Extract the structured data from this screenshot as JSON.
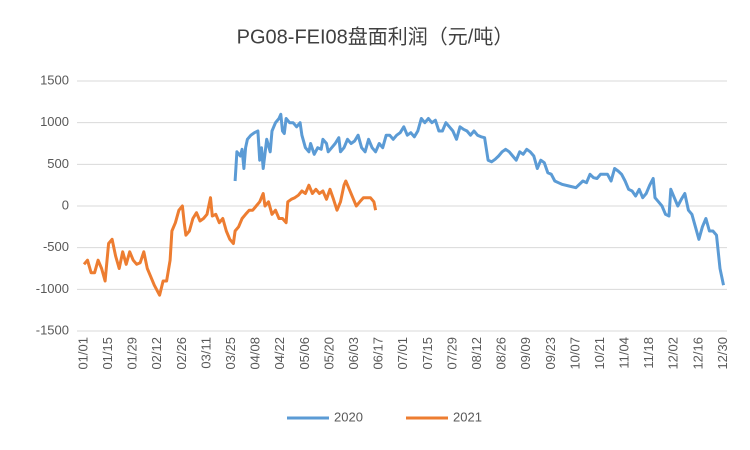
{
  "chart_data": {
    "type": "line",
    "title": "PG08-FEI08盘面利润（元/吨）",
    "xlim": [
      -4,
      366
    ],
    "ylim": [
      -1500,
      1500
    ],
    "yticks": [
      {
        "value": 1500,
        "label": "1500"
      },
      1000,
      500,
      0,
      -500,
      -1000,
      -1500
    ],
    "xticks": [
      {
        "value": 0,
        "label": "01/01"
      },
      {
        "value": 14,
        "label": "01/15"
      },
      {
        "value": 28,
        "label": "01/29"
      },
      {
        "value": 42,
        "label": "02/12"
      },
      {
        "value": 56,
        "label": "02/26"
      },
      {
        "value": 70,
        "label": "03/11"
      },
      {
        "value": 84,
        "label": "03/25"
      },
      {
        "value": 98,
        "label": "04/08"
      },
      {
        "value": 112,
        "label": "04/22"
      },
      {
        "value": 126,
        "label": "05/06"
      },
      {
        "value": 140,
        "label": "05/20"
      },
      {
        "value": 154,
        "label": "06/03"
      },
      {
        "value": 168,
        "label": "06/17"
      },
      {
        "value": 182,
        "label": "07/01"
      },
      {
        "value": 196,
        "label": "07/15"
      },
      {
        "value": 210,
        "label": "07/29"
      },
      {
        "value": 224,
        "label": "08/12"
      },
      {
        "value": 238,
        "label": "08/26"
      },
      {
        "value": 252,
        "label": "09/09"
      },
      {
        "value": 266,
        "label": "09/23"
      },
      {
        "value": 280,
        "label": "10/07"
      },
      {
        "value": 294,
        "label": "10/21"
      },
      {
        "value": 308,
        "label": "11/04"
      },
      {
        "value": 322,
        "label": "11/18"
      },
      {
        "value": 336,
        "label": "12/02"
      },
      {
        "value": 350,
        "label": "12/16"
      },
      {
        "value": 364,
        "label": "12/30"
      }
    ],
    "grid": true,
    "legend": "bottom",
    "series": [
      {
        "name": "2020",
        "color": "#5b9bd5",
        "x": [
          86,
          87,
          89,
          90,
          91,
          92,
          93,
          95,
          97,
          99,
          100,
          101,
          102,
          104,
          106,
          107,
          109,
          111,
          112,
          113,
          114,
          115,
          117,
          119,
          121,
          123,
          124,
          126,
          128,
          129,
          131,
          133,
          135,
          136,
          138,
          139,
          141,
          143,
          145,
          146,
          148,
          150,
          152,
          154,
          156,
          158,
          160,
          162,
          164,
          166,
          168,
          170,
          172,
          174,
          176,
          178,
          180,
          182,
          184,
          186,
          188,
          190,
          192,
          194,
          196,
          198,
          200,
          202,
          204,
          206,
          208,
          210,
          212,
          214,
          216,
          218,
          220,
          222,
          224,
          226,
          228,
          230,
          232,
          234,
          236,
          238,
          240,
          242,
          244,
          246,
          248,
          250,
          252,
          254,
          256,
          258,
          260,
          262,
          264,
          266,
          268,
          270,
          272,
          276,
          280,
          284,
          286,
          288,
          290,
          292,
          294,
          298,
          300,
          302,
          304,
          306,
          308,
          310,
          312,
          314,
          316,
          318,
          320,
          322,
          324,
          325,
          327,
          329,
          331,
          333,
          334,
          336,
          338,
          340,
          342,
          344,
          346,
          348,
          350,
          352,
          354,
          356,
          358,
          360,
          362,
          364
        ],
        "values": [
          300,
          650,
          600,
          680,
          450,
          700,
          800,
          850,
          880,
          900,
          550,
          700,
          450,
          800,
          650,
          900,
          1000,
          1050,
          1100,
          900,
          870,
          1050,
          1000,
          1000,
          950,
          1000,
          850,
          700,
          650,
          750,
          620,
          700,
          680,
          800,
          750,
          650,
          700,
          750,
          820,
          650,
          700,
          800,
          750,
          780,
          850,
          700,
          650,
          800,
          700,
          650,
          750,
          700,
          850,
          850,
          800,
          850,
          880,
          950,
          850,
          880,
          830,
          900,
          1050,
          1000,
          1050,
          1000,
          1030,
          900,
          900,
          1000,
          950,
          900,
          800,
          950,
          920,
          900,
          850,
          900,
          850,
          830,
          820,
          550,
          530,
          560,
          600,
          650,
          680,
          650,
          600,
          550,
          650,
          620,
          680,
          650,
          600,
          450,
          550,
          520,
          400,
          380,
          300,
          280,
          260,
          240,
          220,
          300,
          280,
          380,
          340,
          330,
          380,
          380,
          300,
          450,
          420,
          380,
          300,
          200,
          180,
          120,
          200,
          100,
          150,
          250,
          330,
          100,
          50,
          0,
          -100,
          -120,
          200,
          100,
          0,
          80,
          150,
          -50,
          -100,
          -250,
          -400,
          -250,
          -150,
          -300,
          -300,
          -350,
          -750,
          -950
        ]
      },
      {
        "name": "2021",
        "color": "#ed7d31",
        "x": [
          0,
          2,
          4,
          6,
          8,
          10,
          12,
          14,
          16,
          18,
          20,
          22,
          24,
          26,
          28,
          30,
          32,
          34,
          36,
          38,
          40,
          43,
          45,
          47,
          49,
          50,
          52,
          54,
          56,
          57,
          58,
          60,
          62,
          64,
          66,
          68,
          70,
          72,
          73,
          75,
          77,
          79,
          81,
          83,
          85,
          86,
          88,
          90,
          92,
          94,
          96,
          98,
          100,
          102,
          103,
          105,
          107,
          109,
          111,
          113,
          115,
          116,
          118,
          120,
          122,
          124,
          126,
          128,
          130,
          132,
          134,
          136,
          138,
          140,
          142,
          144,
          146,
          148,
          149,
          151,
          153,
          155,
          157,
          159,
          161,
          163,
          165,
          166
        ],
        "values": [
          -700,
          -650,
          -800,
          -800,
          -650,
          -750,
          -900,
          -450,
          -400,
          -600,
          -750,
          -550,
          -700,
          -550,
          -650,
          -700,
          -680,
          -550,
          -750,
          -850,
          -950,
          -1070,
          -900,
          -900,
          -650,
          -300,
          -200,
          -50,
          0,
          -200,
          -350,
          -300,
          -150,
          -80,
          -180,
          -150,
          -100,
          100,
          -120,
          -100,
          -200,
          -150,
          -300,
          -400,
          -450,
          -300,
          -250,
          -150,
          -100,
          -50,
          -50,
          0,
          50,
          150,
          0,
          50,
          -100,
          -50,
          -150,
          -150,
          -200,
          50,
          80,
          100,
          130,
          180,
          150,
          250,
          150,
          200,
          150,
          180,
          80,
          200,
          80,
          -50,
          50,
          250,
          300,
          200,
          100,
          0,
          50,
          100,
          100,
          100,
          50,
          -50
        ]
      }
    ]
  }
}
